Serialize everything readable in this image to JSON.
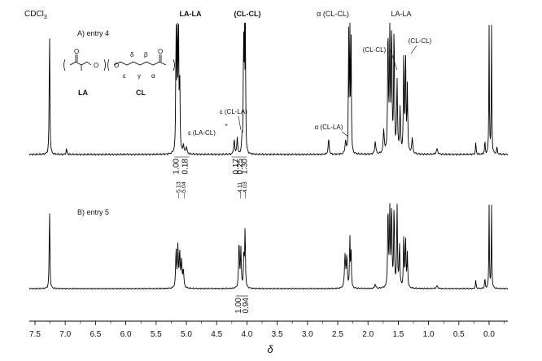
{
  "figure": {
    "xlabel": "δ",
    "solvent_label": "CDCl",
    "solvent_sub": "3"
  },
  "chart_data": [
    {
      "type": "line",
      "panel": "A",
      "title": "A) entry 4",
      "x_reversed": true,
      "xlim": [
        7.55,
        -0.3
      ],
      "peaks": [
        {
          "ppm": 7.26,
          "h": 0.97,
          "w": 0.006
        },
        {
          "ppm": 6.98,
          "h": 0.04,
          "w": 0.008
        },
        {
          "ppm": 5.17,
          "h": 0.96,
          "w": 0.006
        },
        {
          "ppm": 5.15,
          "h": 0.97,
          "w": 0.006
        },
        {
          "ppm": 5.13,
          "h": 0.96,
          "w": 0.006
        },
        {
          "ppm": 5.11,
          "h": 0.6,
          "w": 0.006
        },
        {
          "ppm": 5.05,
          "h": 0.06,
          "w": 0.012
        },
        {
          "ppm": 5.0,
          "h": 0.05,
          "w": 0.012
        },
        {
          "ppm": 4.21,
          "h": 0.12,
          "w": 0.008
        },
        {
          "ppm": 4.16,
          "h": 0.13,
          "w": 0.008
        },
        {
          "ppm": 4.08,
          "h": 0.12,
          "w": 0.008
        },
        {
          "ppm": 4.055,
          "h": 0.96,
          "w": 0.005
        },
        {
          "ppm": 4.04,
          "h": 0.97,
          "w": 0.005
        },
        {
          "ppm": 4.025,
          "h": 0.96,
          "w": 0.005
        },
        {
          "ppm": 2.65,
          "h": 0.11,
          "w": 0.01
        },
        {
          "ppm": 2.37,
          "h": 0.1,
          "w": 0.01
        },
        {
          "ppm": 2.32,
          "h": 0.96,
          "w": 0.005
        },
        {
          "ppm": 2.3,
          "h": 0.97,
          "w": 0.005
        },
        {
          "ppm": 2.28,
          "h": 0.96,
          "w": 0.005
        },
        {
          "ppm": 1.88,
          "h": 0.1,
          "w": 0.01
        },
        {
          "ppm": 1.74,
          "h": 0.18,
          "w": 0.01
        },
        {
          "ppm": 1.67,
          "h": 0.97,
          "w": 0.007
        },
        {
          "ppm": 1.64,
          "h": 0.97,
          "w": 0.007
        },
        {
          "ppm": 1.61,
          "h": 0.97,
          "w": 0.007
        },
        {
          "ppm": 1.57,
          "h": 0.97,
          "w": 0.007
        },
        {
          "ppm": 1.52,
          "h": 0.55,
          "w": 0.008
        },
        {
          "ppm": 1.47,
          "h": 0.35,
          "w": 0.008
        },
        {
          "ppm": 1.41,
          "h": 0.72,
          "w": 0.007
        },
        {
          "ppm": 1.38,
          "h": 0.76,
          "w": 0.007
        },
        {
          "ppm": 1.35,
          "h": 0.5,
          "w": 0.007
        },
        {
          "ppm": 1.27,
          "h": 0.12,
          "w": 0.01
        },
        {
          "ppm": 0.86,
          "h": 0.04,
          "w": 0.015
        },
        {
          "ppm": 0.22,
          "h": 0.09,
          "w": 0.006
        },
        {
          "ppm": 0.07,
          "h": 0.1,
          "w": 0.006
        },
        {
          "ppm": 0.0,
          "h": 0.97,
          "w": 0.005
        },
        {
          "ppm": -0.04,
          "h": 0.97,
          "w": 0.005
        },
        {
          "ppm": -0.13,
          "h": 0.05,
          "w": 0.008
        }
      ],
      "annotations": [
        {
          "id": "lala-main",
          "text": "LA-LA",
          "bold": true
        },
        {
          "id": "clcl-main",
          "text": "(CL-CL)",
          "bold": true
        },
        {
          "id": "alpha-clcl",
          "text": "α (CL-CL)"
        },
        {
          "id": "lala-14",
          "text": "LA-LA"
        },
        {
          "id": "clcl-16",
          "text": "(CL-CL)"
        },
        {
          "id": "clcl-13",
          "text": "(CL-CL)"
        },
        {
          "id": "eps-cla",
          "text": "ε (CL-LA)"
        },
        {
          "id": "eps-lacl",
          "text": "ε (LA-CL)"
        },
        {
          "id": "alpha-clla",
          "text": "α (CL-LA)"
        },
        {
          "id": "star",
          "text": "*"
        }
      ],
      "structure_labels": {
        "left": "LA",
        "right": "CL"
      },
      "integrals": [
        "1.00",
        "0.18",
        "0.17",
        "0.25",
        "1.30"
      ]
    },
    {
      "type": "line",
      "panel": "B",
      "title": "B) entry 5",
      "x_reversed": true,
      "xlim": [
        7.55,
        -0.3
      ],
      "peaks": [
        {
          "ppm": 7.26,
          "h": 0.97,
          "w": 0.006
        },
        {
          "ppm": 5.17,
          "h": 0.45,
          "w": 0.008
        },
        {
          "ppm": 5.14,
          "h": 0.48,
          "w": 0.008
        },
        {
          "ppm": 5.11,
          "h": 0.42,
          "w": 0.008
        },
        {
          "ppm": 5.08,
          "h": 0.3,
          "w": 0.01
        },
        {
          "ppm": 5.05,
          "h": 0.2,
          "w": 0.01
        },
        {
          "ppm": 4.13,
          "h": 0.55,
          "w": 0.008
        },
        {
          "ppm": 4.1,
          "h": 0.45,
          "w": 0.008
        },
        {
          "ppm": 4.05,
          "h": 0.4,
          "w": 0.008
        },
        {
          "ppm": 4.03,
          "h": 0.72,
          "w": 0.006
        },
        {
          "ppm": 2.38,
          "h": 0.38,
          "w": 0.01
        },
        {
          "ppm": 2.35,
          "h": 0.35,
          "w": 0.01
        },
        {
          "ppm": 2.3,
          "h": 0.6,
          "w": 0.006
        },
        {
          "ppm": 2.28,
          "h": 0.45,
          "w": 0.006
        },
        {
          "ppm": 1.88,
          "h": 0.05,
          "w": 0.01
        },
        {
          "ppm": 1.67,
          "h": 0.97,
          "w": 0.007
        },
        {
          "ppm": 1.64,
          "h": 0.97,
          "w": 0.007
        },
        {
          "ppm": 1.61,
          "h": 0.97,
          "w": 0.007
        },
        {
          "ppm": 1.57,
          "h": 0.97,
          "w": 0.007
        },
        {
          "ppm": 1.52,
          "h": 0.97,
          "w": 0.007
        },
        {
          "ppm": 1.48,
          "h": 0.5,
          "w": 0.008
        },
        {
          "ppm": 1.41,
          "h": 0.58,
          "w": 0.007
        },
        {
          "ppm": 1.38,
          "h": 0.6,
          "w": 0.007
        },
        {
          "ppm": 1.35,
          "h": 0.4,
          "w": 0.007
        },
        {
          "ppm": 0.86,
          "h": 0.03,
          "w": 0.015
        },
        {
          "ppm": 0.22,
          "h": 0.1,
          "w": 0.006
        },
        {
          "ppm": 0.07,
          "h": 0.12,
          "w": 0.006
        },
        {
          "ppm": 0.0,
          "h": 0.97,
          "w": 0.005
        },
        {
          "ppm": -0.04,
          "h": 0.97,
          "w": 0.005
        }
      ],
      "peak_labels": [
        {
          "ppm": 5.13,
          "text": "5.13"
        },
        {
          "ppm": 5.04,
          "text": "5.04"
        },
        {
          "ppm": 4.11,
          "text": "4.11"
        },
        {
          "ppm": 4.03,
          "text": "4.03"
        }
      ],
      "integrals": [
        "1.00",
        "0.94"
      ]
    }
  ],
  "x_axis": {
    "ticks": [
      "7.5",
      "7.0",
      "6.5",
      "6.0",
      "5.5",
      "5.0",
      "4.5",
      "4.0",
      "3.5",
      "3.0",
      "2.5",
      "2.0",
      "1.5",
      "1.0",
      "0.5",
      "0.0"
    ],
    "tick_values": [
      7.5,
      7.0,
      6.5,
      6.0,
      5.5,
      5.0,
      4.5,
      4.0,
      3.5,
      3.0,
      2.5,
      2.0,
      1.5,
      1.0,
      0.5,
      0.0
    ]
  }
}
